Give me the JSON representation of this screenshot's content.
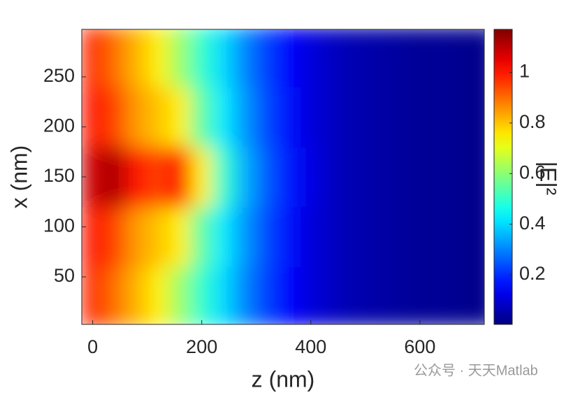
{
  "chart_data": {
    "type": "heatmap",
    "xlabel": "z (nm)",
    "ylabel": "x (nm)",
    "colorbar_label": "|E|²",
    "watermark": "公众号 · 天天Matlab",
    "colormap": "jet",
    "x": [
      0,
      40,
      80,
      120,
      160,
      200,
      240,
      280,
      320,
      360,
      400,
      440,
      480,
      520,
      560,
      600,
      640,
      680,
      720
    ],
    "y": [
      15,
      45,
      75,
      105,
      135,
      165,
      195,
      225,
      255,
      285
    ],
    "values": [
      [
        0.98,
        0.9,
        0.82,
        0.75,
        0.62,
        0.5,
        0.4,
        0.3,
        0.22,
        0.15,
        0.11,
        0.08,
        0.06,
        0.05,
        0.04,
        0.03,
        0.03,
        0.02,
        0.02
      ],
      [
        0.98,
        0.9,
        0.82,
        0.75,
        0.62,
        0.5,
        0.4,
        0.3,
        0.22,
        0.15,
        0.11,
        0.08,
        0.06,
        0.05,
        0.04,
        0.03,
        0.03,
        0.02,
        0.02
      ],
      [
        1.0,
        0.95,
        0.85,
        0.8,
        0.75,
        0.55,
        0.42,
        0.32,
        0.23,
        0.16,
        0.11,
        0.08,
        0.06,
        0.05,
        0.04,
        0.03,
        0.03,
        0.02,
        0.02
      ],
      [
        1.0,
        0.95,
        0.85,
        0.8,
        0.75,
        0.55,
        0.42,
        0.32,
        0.23,
        0.16,
        0.11,
        0.08,
        0.06,
        0.05,
        0.04,
        0.03,
        0.03,
        0.02,
        0.02
      ],
      [
        1.08,
        1.12,
        1.0,
        0.95,
        1.02,
        0.75,
        0.5,
        0.35,
        0.25,
        0.17,
        0.12,
        0.08,
        0.06,
        0.05,
        0.04,
        0.03,
        0.03,
        0.02,
        0.02
      ],
      [
        1.08,
        1.12,
        1.0,
        0.95,
        1.02,
        0.75,
        0.5,
        0.35,
        0.25,
        0.17,
        0.12,
        0.08,
        0.06,
        0.05,
        0.04,
        0.03,
        0.03,
        0.02,
        0.02
      ],
      [
        1.0,
        0.95,
        0.85,
        0.8,
        0.75,
        0.55,
        0.42,
        0.32,
        0.23,
        0.16,
        0.11,
        0.08,
        0.06,
        0.05,
        0.04,
        0.03,
        0.03,
        0.02,
        0.02
      ],
      [
        1.0,
        0.95,
        0.85,
        0.8,
        0.75,
        0.55,
        0.42,
        0.32,
        0.23,
        0.16,
        0.11,
        0.08,
        0.06,
        0.05,
        0.04,
        0.03,
        0.03,
        0.02,
        0.02
      ],
      [
        0.98,
        0.9,
        0.82,
        0.75,
        0.62,
        0.5,
        0.4,
        0.3,
        0.22,
        0.15,
        0.11,
        0.08,
        0.06,
        0.05,
        0.04,
        0.03,
        0.03,
        0.02,
        0.02
      ],
      [
        0.98,
        0.9,
        0.82,
        0.75,
        0.62,
        0.5,
        0.4,
        0.3,
        0.22,
        0.15,
        0.11,
        0.08,
        0.06,
        0.05,
        0.04,
        0.03,
        0.03,
        0.02,
        0.02
      ]
    ],
    "xlim": [
      -20,
      718
    ],
    "ylim": [
      2.5,
      297.5
    ],
    "clim": [
      0.004,
      1.17
    ],
    "xticks": [
      0,
      200,
      400,
      600
    ],
    "yticks": [
      50,
      100,
      150,
      200,
      250
    ],
    "cticks": [
      0.2,
      0.4,
      0.6,
      0.8,
      1
    ]
  }
}
